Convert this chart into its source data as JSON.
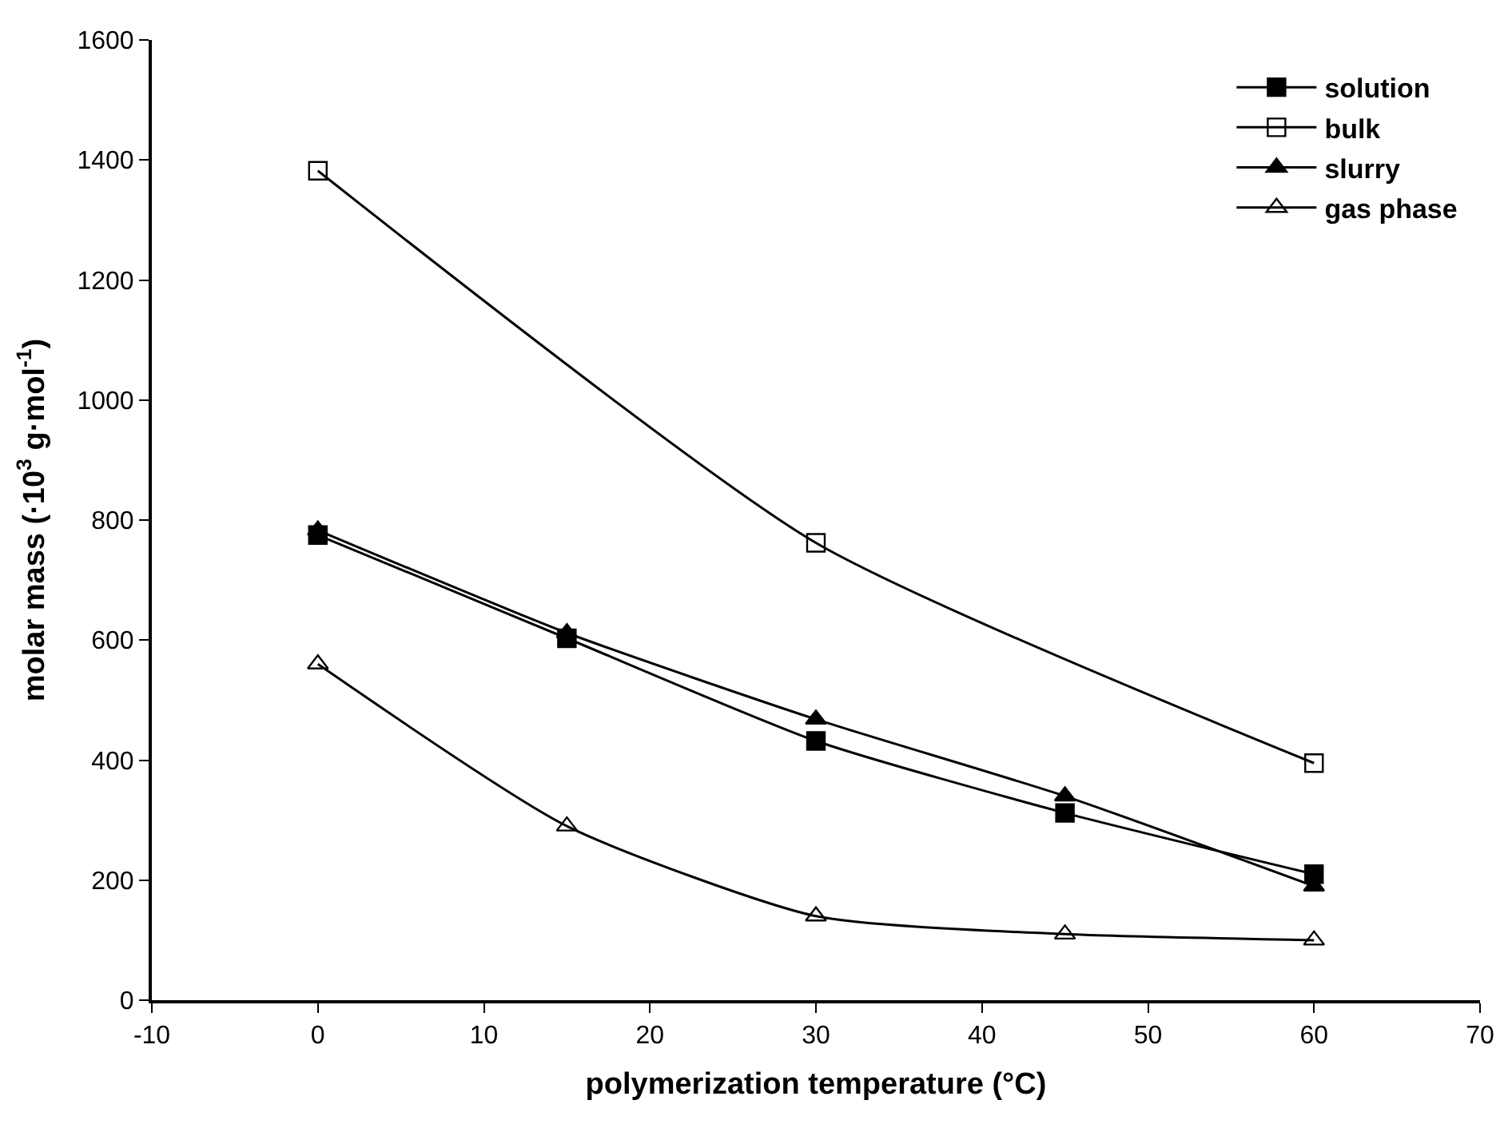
{
  "chart_data": {
    "type": "line",
    "xlabel": "polymerization temperature (°C)",
    "ylabel": "molar mass (·10$^{3}$ g·mol$^{-1}$)",
    "x": [
      0,
      15,
      30,
      45,
      60
    ],
    "series": [
      {
        "name": "solution",
        "color": "#000000",
        "marker": "square",
        "values": [
          775,
          603,
          432,
          312,
          210
        ]
      },
      {
        "name": "bulk",
        "color": "#000000",
        "marker": "square-open",
        "values": [
          1382,
          null,
          762,
          null,
          395
        ]
      },
      {
        "name": "slurry",
        "color": "#000000",
        "marker": "triangle",
        "values": [
          783,
          612,
          468,
          340,
          190
        ]
      },
      {
        "name": "gas phase",
        "color": "#000000",
        "marker": "triangle-open",
        "values": [
          560,
          290,
          140,
          110,
          100
        ]
      }
    ],
    "xlim": [
      -10,
      70
    ],
    "xticks": [
      -10,
      0,
      10,
      20,
      30,
      40,
      50,
      60,
      70
    ],
    "ylim": [
      0,
      1600
    ],
    "yticks": [
      0,
      200,
      400,
      600,
      800,
      1000,
      1200,
      1400,
      1600
    ],
    "legend": "top right",
    "line_style": "solid"
  }
}
